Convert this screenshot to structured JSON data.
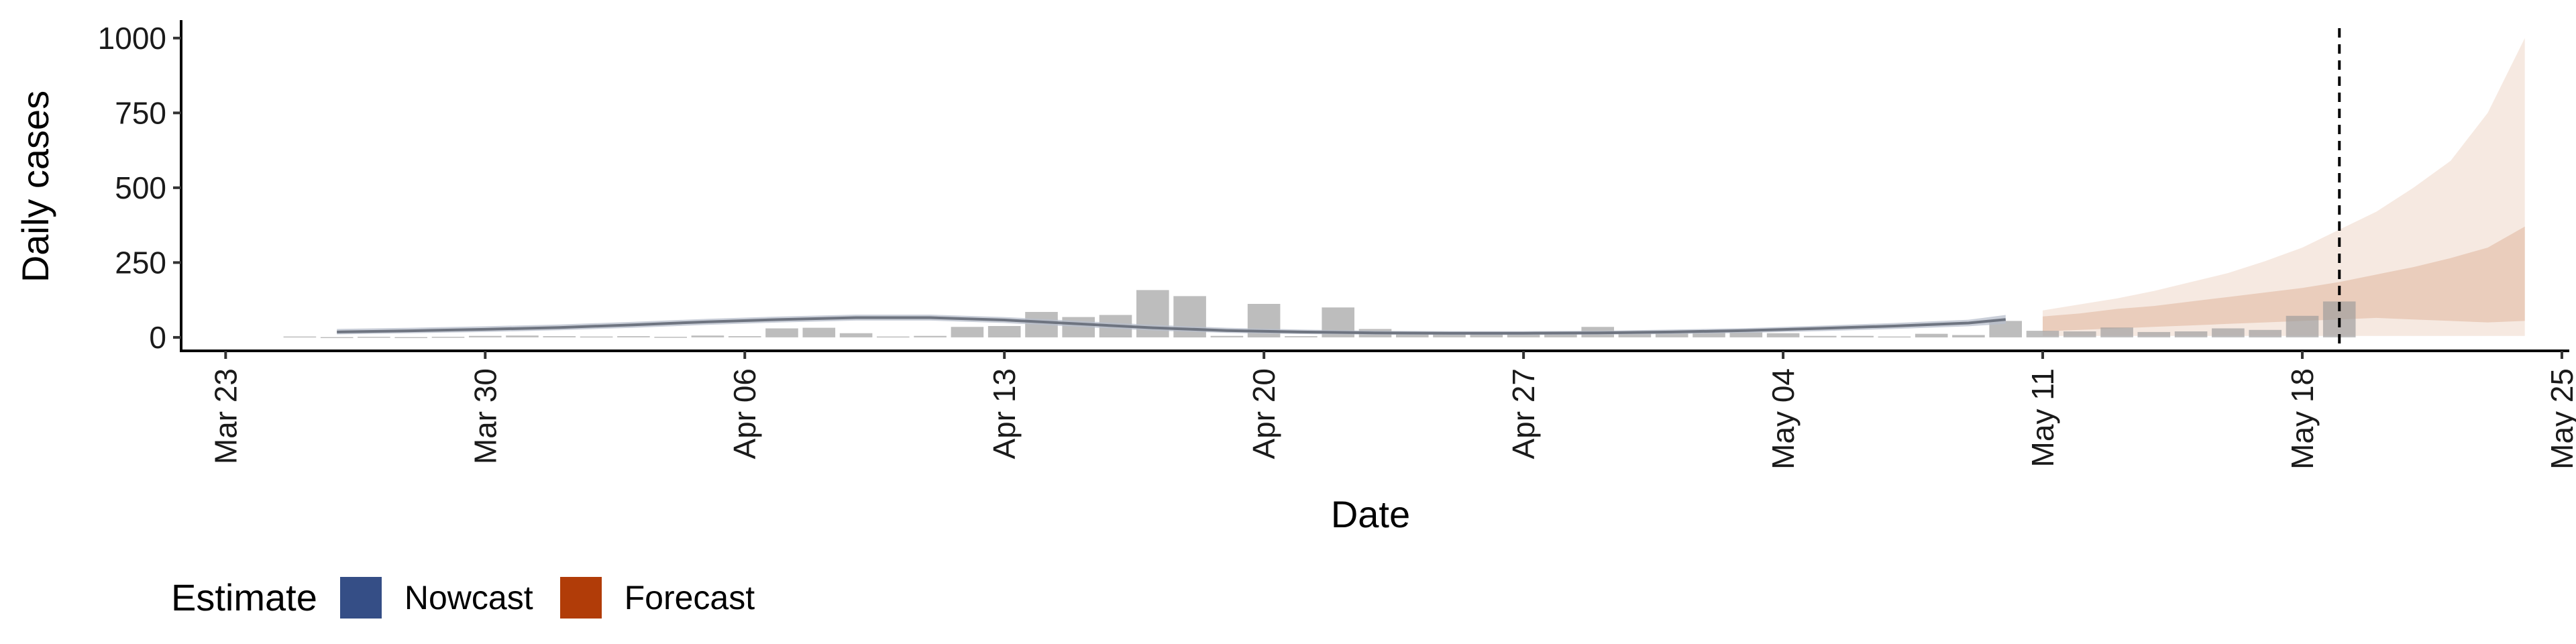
{
  "chart_data": {
    "type": "bar",
    "title": "",
    "xlabel": "Date",
    "ylabel": "Daily cases",
    "y_ticks": [
      "0",
      "250",
      "500",
      "750",
      "1000"
    ],
    "ylim": [
      -45,
      1060
    ],
    "x_ticks": [
      "Mar 23",
      "Mar 30",
      "Apr 06",
      "Apr 13",
      "Apr 20",
      "Apr 27",
      "May 04",
      "May 11",
      "May 18",
      "May 25"
    ],
    "x_start_date": "Mar 23",
    "x_range_days": [
      -1.2,
      63.2
    ],
    "estimate_date": "May 19",
    "legend": {
      "title": "Estimate",
      "position": "bottom-left",
      "entries": [
        {
          "label": "Nowcast",
          "color": "#354e86"
        },
        {
          "label": "Forecast",
          "color": "#b13c08"
        }
      ]
    },
    "colors": {
      "bars": "#9a9a9a",
      "nowcast_line": "#6e7480",
      "nowcast_band": "#b8bfcc",
      "forecast_inner": "#e8c8b5",
      "forecast_outer": "#f6e8df",
      "vline": "#000000"
    },
    "reported_cases": [
      {
        "date": "Mar 25",
        "value": 3
      },
      {
        "date": "Mar 26",
        "value": 1
      },
      {
        "date": "Mar 27",
        "value": 2
      },
      {
        "date": "Mar 28",
        "value": 1
      },
      {
        "date": "Mar 29",
        "value": 2
      },
      {
        "date": "Mar 30",
        "value": 5
      },
      {
        "date": "Mar 31",
        "value": 6
      },
      {
        "date": "Apr 01",
        "value": 4
      },
      {
        "date": "Apr 02",
        "value": 3
      },
      {
        "date": "Apr 03",
        "value": 4
      },
      {
        "date": "Apr 04",
        "value": 2
      },
      {
        "date": "Apr 05",
        "value": 6
      },
      {
        "date": "Apr 06",
        "value": 4
      },
      {
        "date": "Apr 07",
        "value": 30
      },
      {
        "date": "Apr 08",
        "value": 32
      },
      {
        "date": "Apr 09",
        "value": 14
      },
      {
        "date": "Apr 10",
        "value": 3
      },
      {
        "date": "Apr 11",
        "value": 5
      },
      {
        "date": "Apr 12",
        "value": 35
      },
      {
        "date": "Apr 13",
        "value": 38
      },
      {
        "date": "Apr 14",
        "value": 85
      },
      {
        "date": "Apr 15",
        "value": 68
      },
      {
        "date": "Apr 16",
        "value": 75
      },
      {
        "date": "Apr 17",
        "value": 158
      },
      {
        "date": "Apr 18",
        "value": 138
      },
      {
        "date": "Apr 19",
        "value": 5
      },
      {
        "date": "Apr 20",
        "value": 112
      },
      {
        "date": "Apr 21",
        "value": 4
      },
      {
        "date": "Apr 22",
        "value": 100
      },
      {
        "date": "Apr 23",
        "value": 28
      },
      {
        "date": "Apr 24",
        "value": 18
      },
      {
        "date": "Apr 25",
        "value": 18
      },
      {
        "date": "Apr 26",
        "value": 17
      },
      {
        "date": "Apr 27",
        "value": 16
      },
      {
        "date": "Apr 28",
        "value": 15
      },
      {
        "date": "Apr 29",
        "value": 35
      },
      {
        "date": "Apr 30",
        "value": 20
      },
      {
        "date": "May 01",
        "value": 18
      },
      {
        "date": "May 02",
        "value": 20
      },
      {
        "date": "May 03",
        "value": 17
      },
      {
        "date": "May 04",
        "value": 14
      },
      {
        "date": "May 05",
        "value": 5
      },
      {
        "date": "May 06",
        "value": 5
      },
      {
        "date": "May 07",
        "value": 3
      },
      {
        "date": "May 08",
        "value": 12
      },
      {
        "date": "May 09",
        "value": 8
      },
      {
        "date": "May 10",
        "value": 55
      },
      {
        "date": "May 11",
        "value": 22
      },
      {
        "date": "May 12",
        "value": 20
      },
      {
        "date": "May 13",
        "value": 33
      },
      {
        "date": "May 14",
        "value": 18
      },
      {
        "date": "May 15",
        "value": 20
      },
      {
        "date": "May 16",
        "value": 30
      },
      {
        "date": "May 17",
        "value": 25
      },
      {
        "date": "May 18",
        "value": 72
      },
      {
        "date": "May 19",
        "value": 120
      }
    ],
    "nowcast": [
      {
        "date": "Mar 26",
        "median": 18,
        "lower": 10,
        "upper": 28
      },
      {
        "date": "Mar 28",
        "median": 22,
        "lower": 14,
        "upper": 32
      },
      {
        "date": "Mar 30",
        "median": 27,
        "lower": 18,
        "upper": 37
      },
      {
        "date": "Apr 01",
        "median": 33,
        "lower": 24,
        "upper": 43
      },
      {
        "date": "Apr 03",
        "median": 42,
        "lower": 32,
        "upper": 52
      },
      {
        "date": "Apr 05",
        "median": 52,
        "lower": 42,
        "upper": 62
      },
      {
        "date": "Apr 07",
        "median": 60,
        "lower": 50,
        "upper": 70
      },
      {
        "date": "Apr 09",
        "median": 66,
        "lower": 56,
        "upper": 76
      },
      {
        "date": "Apr 11",
        "median": 66,
        "lower": 56,
        "upper": 76
      },
      {
        "date": "Apr 13",
        "median": 58,
        "lower": 48,
        "upper": 68
      },
      {
        "date": "Apr 15",
        "median": 45,
        "lower": 35,
        "upper": 55
      },
      {
        "date": "Apr 17",
        "median": 32,
        "lower": 23,
        "upper": 42
      },
      {
        "date": "Apr 19",
        "median": 23,
        "lower": 15,
        "upper": 32
      },
      {
        "date": "Apr 21",
        "median": 18,
        "lower": 11,
        "upper": 26
      },
      {
        "date": "Apr 23",
        "median": 15,
        "lower": 9,
        "upper": 22
      },
      {
        "date": "Apr 25",
        "median": 14,
        "lower": 8,
        "upper": 21
      },
      {
        "date": "Apr 27",
        "median": 14,
        "lower": 8,
        "upper": 21
      },
      {
        "date": "Apr 29",
        "median": 15,
        "lower": 9,
        "upper": 22
      },
      {
        "date": "May 01",
        "median": 18,
        "lower": 11,
        "upper": 26
      },
      {
        "date": "May 03",
        "median": 23,
        "lower": 15,
        "upper": 31
      },
      {
        "date": "May 05",
        "median": 30,
        "lower": 21,
        "upper": 39
      },
      {
        "date": "May 07",
        "median": 38,
        "lower": 28,
        "upper": 48
      },
      {
        "date": "May 09",
        "median": 48,
        "lower": 37,
        "upper": 59
      },
      {
        "date": "May 10",
        "median": 60,
        "lower": 45,
        "upper": 75
      }
    ],
    "forecast": [
      {
        "date": "May 11",
        "lower50": 20,
        "upper50": 70,
        "lower90": 5,
        "upper90": 90
      },
      {
        "date": "May 12",
        "lower50": 25,
        "upper50": 80,
        "lower90": 5,
        "upper90": 110
      },
      {
        "date": "May 13",
        "lower50": 30,
        "upper50": 95,
        "lower90": 5,
        "upper90": 130
      },
      {
        "date": "May 14",
        "lower50": 35,
        "upper50": 105,
        "lower90": 5,
        "upper90": 155
      },
      {
        "date": "May 15",
        "lower50": 40,
        "upper50": 120,
        "lower90": 5,
        "upper90": 185
      },
      {
        "date": "May 16",
        "lower50": 45,
        "upper50": 135,
        "lower90": 5,
        "upper90": 215
      },
      {
        "date": "May 17",
        "lower50": 50,
        "upper50": 150,
        "lower90": 5,
        "upper90": 255
      },
      {
        "date": "May 18",
        "lower50": 55,
        "upper50": 165,
        "lower90": 5,
        "upper90": 300
      },
      {
        "date": "May 19",
        "lower50": 60,
        "upper50": 185,
        "lower90": 5,
        "upper90": 360
      },
      {
        "date": "May 20",
        "lower50": 65,
        "upper50": 210,
        "lower90": 5,
        "upper90": 420
      },
      {
        "date": "May 21",
        "lower50": 60,
        "upper50": 235,
        "lower90": 5,
        "upper90": 500
      },
      {
        "date": "May 22",
        "lower50": 55,
        "upper50": 265,
        "lower90": 5,
        "upper90": 590
      },
      {
        "date": "May 23",
        "lower50": 50,
        "upper50": 300,
        "lower90": 5,
        "upper90": 750
      },
      {
        "date": "May 24",
        "lower50": 55,
        "upper50": 370,
        "lower90": 5,
        "upper90": 1000
      }
    ]
  }
}
